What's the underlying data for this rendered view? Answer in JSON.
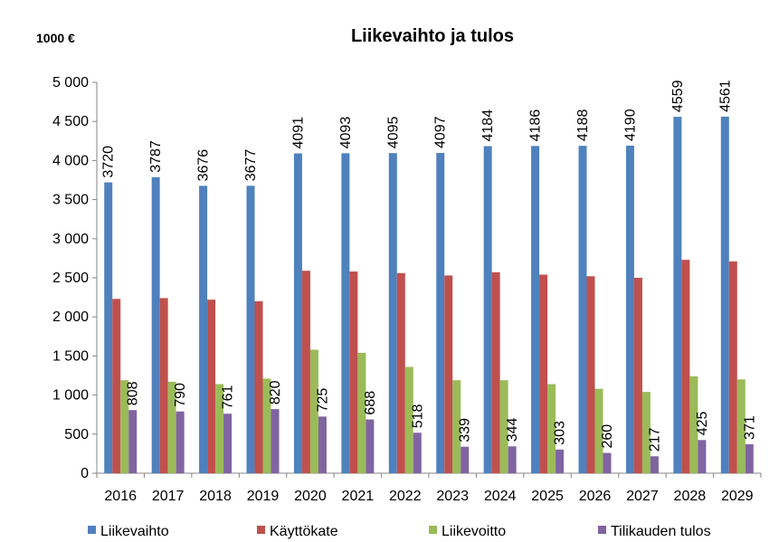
{
  "chart_data": {
    "type": "bar",
    "title": "Liikevaihto ja tulos",
    "unit_label": "1000 €",
    "ylim": [
      0,
      5000
    ],
    "y_ticks": [
      "0",
      "500",
      "1 000",
      "1 500",
      "2 000",
      "2 500",
      "3 000",
      "3 500",
      "4 000",
      "4 500",
      "5 000"
    ],
    "y_tick_values": [
      0,
      500,
      1000,
      1500,
      2000,
      2500,
      3000,
      3500,
      4000,
      4500,
      5000
    ],
    "categories": [
      "2016",
      "2017",
      "2018",
      "2019",
      "2020",
      "2021",
      "2022",
      "2023",
      "2024",
      "2025",
      "2026",
      "2027",
      "2028",
      "2029"
    ],
    "grid": false,
    "legend_position": "bottom",
    "series": [
      {
        "name": "Liikevaihto",
        "color": "#4f81bd",
        "labeled": true,
        "values": [
          3720,
          3787,
          3676,
          3677,
          4091,
          4093,
          4095,
          4097,
          4184,
          4186,
          4188,
          4190,
          4559,
          4561
        ]
      },
      {
        "name": "Käyttökate",
        "color": "#c0504d",
        "labeled": false,
        "values": [
          2230,
          2240,
          2220,
          2200,
          2590,
          2580,
          2560,
          2530,
          2570,
          2540,
          2520,
          2500,
          2730,
          2710
        ]
      },
      {
        "name": "Liikevoitto",
        "color": "#9bbb59",
        "labeled": false,
        "values": [
          1190,
          1170,
          1140,
          1210,
          1580,
          1540,
          1360,
          1190,
          1190,
          1140,
          1080,
          1040,
          1240,
          1200
        ]
      },
      {
        "name": "Tilikauden tulos",
        "color": "#8064a2",
        "labeled": true,
        "values": [
          808,
          790,
          761,
          820,
          725,
          688,
          518,
          339,
          344,
          303,
          260,
          217,
          425,
          371
        ]
      }
    ]
  }
}
